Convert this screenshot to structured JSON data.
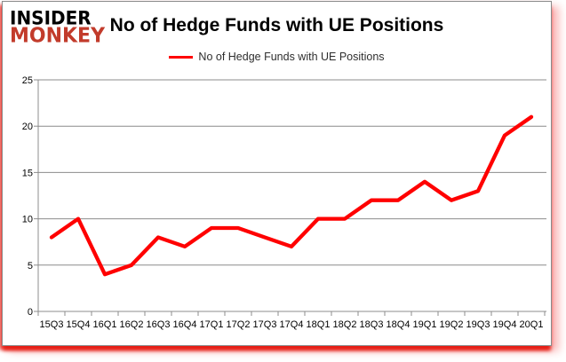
{
  "logo": {
    "line1": "INSIDER",
    "line2": "MONKEY"
  },
  "header": {
    "title": "No of Hedge Funds with UE Positions"
  },
  "legend": {
    "label": "No of Hedge Funds with UE Positions",
    "line_color": "#ff0000"
  },
  "colors": {
    "line": "#ff0000",
    "grid": "#8c8c8c",
    "axis": "#8c8c8c",
    "logo_red": "#c23b2b",
    "logo_black": "#000000",
    "card_border": "#8a8a8a",
    "frame_glow": "#e61a10",
    "legend_text": "#2e2e2e"
  },
  "chart_data": {
    "type": "line",
    "title": "No of Hedge Funds with UE Positions",
    "series_name": "No of Hedge Funds with UE Positions",
    "categories": [
      "15Q3",
      "15Q4",
      "16Q1",
      "16Q2",
      "16Q3",
      "16Q4",
      "17Q1",
      "17Q2",
      "17Q3",
      "17Q4",
      "18Q1",
      "18Q2",
      "18Q3",
      "18Q4",
      "19Q1",
      "19Q2",
      "19Q3",
      "19Q4",
      "20Q1"
    ],
    "values": [
      8,
      10,
      4,
      5,
      8,
      7,
      9,
      9,
      8,
      7,
      10,
      10,
      12,
      12,
      14,
      12,
      13,
      19,
      21
    ],
    "xlabel": "",
    "ylabel": "",
    "ylim": [
      0,
      25
    ],
    "yticks": [
      0,
      5,
      10,
      15,
      20,
      25
    ],
    "grid": true,
    "legend_position": "top",
    "line_color": "#ff0000"
  }
}
